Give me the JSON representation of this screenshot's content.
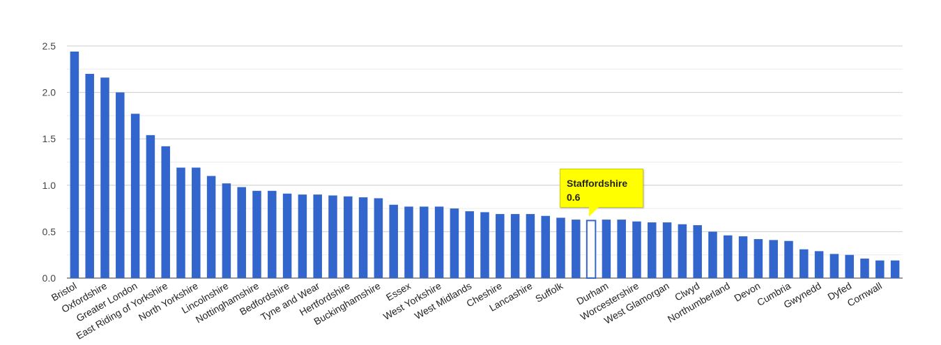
{
  "chart_data": {
    "type": "bar",
    "ylim": [
      0,
      2.5
    ],
    "yticks": [
      "0.0",
      "0.5",
      "1.0",
      "1.5",
      "2.0",
      "2.5"
    ],
    "grid": true,
    "bar_color": "#3366cc",
    "highlight_color": "#ffff00",
    "highlight_index": 34,
    "categories": [
      "Bristol",
      "",
      "Oxfordshire",
      "",
      "Greater London",
      "",
      "East Riding of Yorkshire",
      "",
      "North Yorkshire",
      "",
      "Lincolnshire",
      "",
      "Nottinghamshire",
      "",
      "Bedfordshire",
      "",
      "Tyne and Wear",
      "",
      "Hertfordshire",
      "",
      "Buckinghamshire",
      "",
      "Essex",
      "",
      "West Yorkshire",
      "",
      "West Midlands",
      "",
      "Cheshire",
      "",
      "Lancashire",
      "",
      "Suffolk",
      "",
      "Staffordshire",
      "Durham",
      "",
      "Worcestershire",
      "",
      "West Glamorgan",
      "",
      "Clwyd",
      "",
      "Northumberland",
      "",
      "Devon",
      "",
      "Cumbria",
      "",
      "Gwynedd",
      "",
      "Dyfed",
      "",
      "Cornwall",
      ""
    ],
    "values": [
      2.44,
      2.2,
      2.16,
      2.0,
      1.77,
      1.54,
      1.42,
      1.19,
      1.19,
      1.1,
      1.02,
      0.98,
      0.94,
      0.94,
      0.91,
      0.9,
      0.9,
      0.89,
      0.88,
      0.87,
      0.86,
      0.79,
      0.77,
      0.77,
      0.77,
      0.75,
      0.72,
      0.71,
      0.69,
      0.69,
      0.69,
      0.67,
      0.65,
      0.63,
      0.62,
      0.63,
      0.63,
      0.61,
      0.6,
      0.6,
      0.58,
      0.57,
      0.5,
      0.46,
      0.45,
      0.42,
      0.41,
      0.4,
      0.31,
      0.29,
      0.26,
      0.25,
      0.21,
      0.19,
      0.19
    ],
    "tooltip": {
      "name": "Staffordshire",
      "value": "0.6"
    }
  }
}
